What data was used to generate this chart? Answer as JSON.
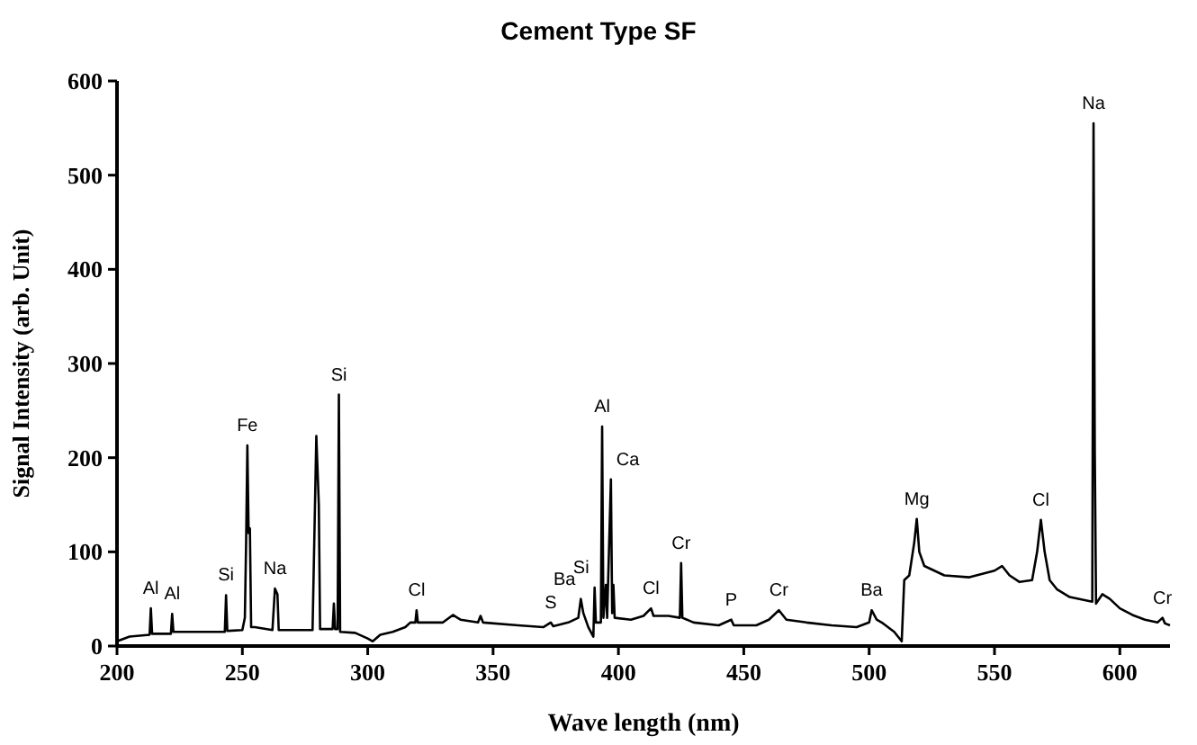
{
  "chart_data": {
    "type": "line",
    "title": "Cement Type SF",
    "xlabel": "Wave length (nm)",
    "ylabel": "Signal Intensity (arb. Unit)",
    "xlim": [
      200,
      620
    ],
    "ylim": [
      0,
      600
    ],
    "xticks": [
      200,
      250,
      300,
      350,
      400,
      450,
      500,
      550,
      600
    ],
    "yticks": [
      0,
      100,
      200,
      300,
      400,
      500,
      600
    ],
    "grid": false,
    "marker": "none",
    "line_style": "solid",
    "series": [
      {
        "color": "#000000",
        "x": [
          200,
          205,
          213,
          213.5,
          214,
          221.5,
          222,
          222.5,
          240,
          243,
          243.5,
          244,
          250,
          251,
          251.5,
          252,
          252.5,
          253,
          253.5,
          255,
          262,
          263,
          264,
          264.5,
          278,
          279.5,
          280.5,
          281,
          286,
          286.5,
          287,
          288,
          288.5,
          289,
          295,
          300,
          302,
          305,
          310,
          315,
          317,
          319,
          319.5,
          320,
          330,
          334,
          337,
          344,
          345,
          346,
          360,
          370,
          373,
          374,
          380,
          384,
          385,
          386,
          388,
          390,
          390.5,
          391,
          393,
          393.5,
          394,
          395,
          395.5,
          397,
          397.5,
          398,
          398.5,
          405,
          410,
          413,
          414,
          420,
          424.5,
          425,
          425.5,
          430,
          440,
          445,
          446,
          455,
          460,
          464,
          467,
          475,
          485,
          495,
          500,
          501,
          503,
          505,
          510,
          513,
          514,
          516,
          518,
          519,
          520,
          522,
          530,
          540,
          550,
          553,
          556,
          560,
          565,
          567,
          568.5,
          570,
          572,
          575,
          580,
          589,
          589.5,
          590,
          590.5,
          593,
          596,
          600,
          605,
          610,
          615,
          617,
          618,
          620
        ],
        "values": [
          5,
          10,
          12,
          40,
          13,
          13,
          34,
          15,
          15,
          15,
          54,
          16,
          17,
          30,
          110,
          213,
          120,
          125,
          20,
          20,
          17,
          61,
          55,
          17,
          17,
          223,
          150,
          18,
          18,
          45,
          18,
          18,
          267,
          15,
          14,
          8,
          5,
          12,
          15,
          20,
          25,
          25,
          38,
          25,
          25,
          33,
          28,
          25,
          32,
          25,
          22,
          20,
          25,
          21,
          25,
          30,
          50,
          35,
          20,
          10,
          62,
          25,
          25,
          233,
          30,
          65,
          30,
          177,
          35,
          65,
          30,
          28,
          32,
          40,
          32,
          32,
          30,
          88,
          30,
          25,
          22,
          28,
          22,
          22,
          28,
          38,
          28,
          25,
          22,
          20,
          25,
          38,
          28,
          25,
          15,
          5,
          70,
          75,
          110,
          135,
          100,
          85,
          75,
          73,
          80,
          85,
          75,
          68,
          70,
          100,
          134,
          100,
          70,
          60,
          52,
          47,
          555,
          207,
          45,
          55,
          50,
          40,
          33,
          28,
          25,
          30,
          24,
          22
        ]
      }
    ],
    "annotations": [
      {
        "text": "Al",
        "x": 213.5,
        "y": 40
      },
      {
        "text": "Al",
        "x": 222,
        "y": 34
      },
      {
        "text": "Si",
        "x": 243.5,
        "y": 54
      },
      {
        "text": "Fe",
        "x": 252,
        "y": 213
      },
      {
        "text": "Na",
        "x": 263,
        "y": 61
      },
      {
        "text": "Si",
        "x": 288.5,
        "y": 267
      },
      {
        "text": "Cl",
        "x": 319.5,
        "y": 38
      },
      {
        "text": "S",
        "x": 373,
        "y": 25
      },
      {
        "text": "Ba",
        "x": 385,
        "y": 50
      },
      {
        "text": "Si",
        "x": 390.5,
        "y": 62
      },
      {
        "text": "Al",
        "x": 393.5,
        "y": 233
      },
      {
        "text": "Ca",
        "x": 397,
        "y": 177
      },
      {
        "text": "Cl",
        "x": 413,
        "y": 40
      },
      {
        "text": "Cr",
        "x": 425,
        "y": 88
      },
      {
        "text": "P",
        "x": 445,
        "y": 28
      },
      {
        "text": "Cr",
        "x": 464,
        "y": 38
      },
      {
        "text": "Ba",
        "x": 501,
        "y": 38
      },
      {
        "text": "Mg",
        "x": 519,
        "y": 135
      },
      {
        "text": "Cl",
        "x": 568.5,
        "y": 134
      },
      {
        "text": "Na",
        "x": 589.5,
        "y": 555
      },
      {
        "text": "Cr",
        "x": 617,
        "y": 30
      }
    ]
  }
}
